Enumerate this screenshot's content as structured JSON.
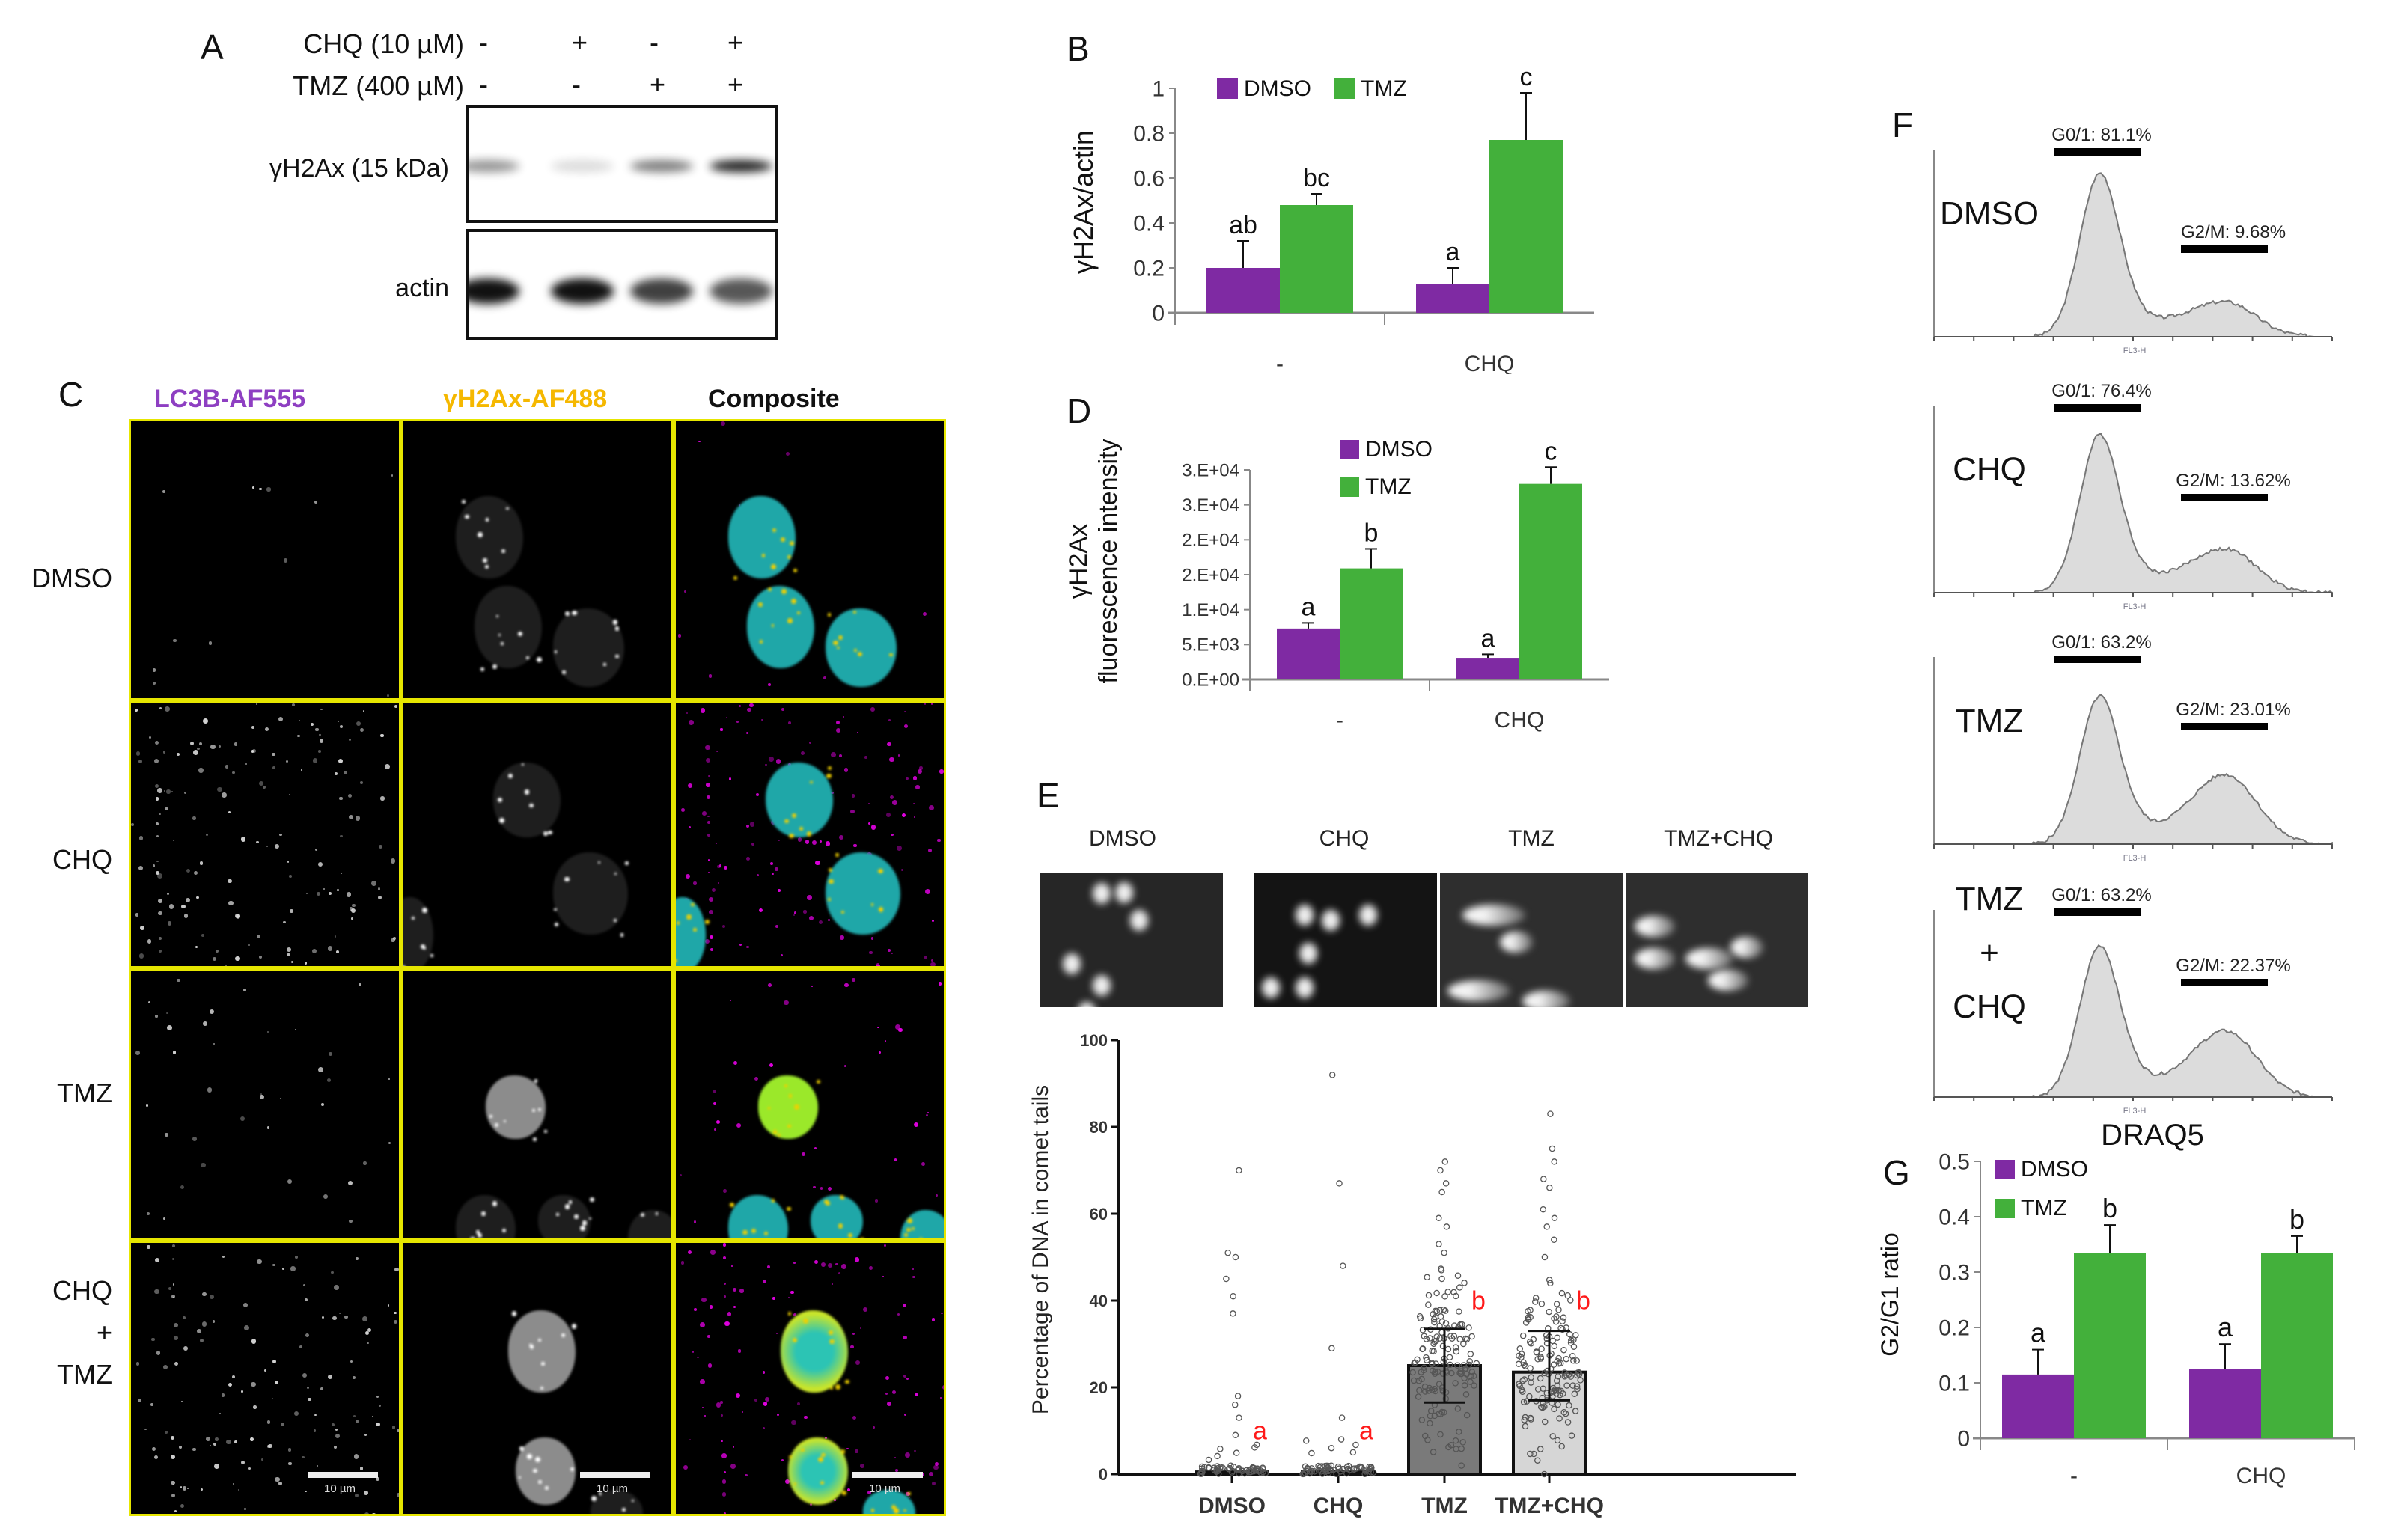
{
  "panels": {
    "A": {
      "letter": "A",
      "row_labels": [
        "CHQ (10 µM)",
        "TMZ (400 µM)"
      ],
      "chq_signs": [
        "-",
        "+",
        "-",
        "+"
      ],
      "tmz_signs": [
        "-",
        "-",
        "+",
        "+"
      ],
      "blots": [
        {
          "label": "γH2Ax (15 kDa)",
          "band_intensity": [
            0.45,
            0.15,
            0.55,
            0.95
          ]
        },
        {
          "label": "actin",
          "band_intensity": [
            1.0,
            1.0,
            0.8,
            0.7
          ]
        }
      ]
    },
    "B": {
      "letter": "B"
    },
    "C": {
      "letter": "C",
      "column_headers": [
        "LC3B-AF555",
        "γH2Ax-AF488",
        "Composite"
      ],
      "column_colors": [
        "#8e3fc2",
        "#f5b800",
        "#111111"
      ],
      "row_labels": [
        "DMSO",
        "CHQ",
        "TMZ",
        "CHQ\n+\nTMZ"
      ],
      "row_label_lines": [
        [
          "DMSO"
        ],
        [
          "CHQ"
        ],
        [
          "TMZ"
        ],
        [
          "CHQ",
          "+",
          "TMZ"
        ]
      ],
      "scale_bar": "10 µm",
      "border_color": "#e6e600"
    },
    "D": {
      "letter": "D"
    },
    "E": {
      "letter": "E",
      "image_labels": [
        "DMSO",
        "CHQ",
        "TMZ",
        "TMZ+CHQ"
      ]
    },
    "F": {
      "letter": "F",
      "histograms": [
        {
          "label_lines": [
            "DMSO"
          ],
          "g01": "G0/1: 81.1%",
          "g2m": "G2/M: 9.68%",
          "axis": "FL3-H"
        },
        {
          "label_lines": [
            "CHQ"
          ],
          "g01": "G0/1: 76.4%",
          "g2m": "G2/M: 13.62%",
          "axis": "FL3-H"
        },
        {
          "label_lines": [
            "TMZ"
          ],
          "g01": "G0/1: 63.2%",
          "g2m": "G2/M: 23.01%",
          "axis": "FL3-H"
        },
        {
          "label_lines": [
            "TMZ",
            "+",
            "CHQ"
          ],
          "g01": "G0/1: 63.2%",
          "g2m": "G2/M: 22.37%",
          "axis": "FL3-H"
        }
      ]
    },
    "G": {
      "letter": "G"
    }
  },
  "colors": {
    "dmso": "#7f2aa3",
    "tmz": "#43b03b",
    "letter_red": "#ff1a1a"
  },
  "chart_data": [
    {
      "id": "B",
      "type": "bar",
      "title": "",
      "xlabel": "",
      "ylabel": "γH2Ax/actin",
      "categories": [
        "-",
        "CHQ"
      ],
      "series": [
        {
          "name": "DMSO",
          "values": [
            0.2,
            0.13
          ],
          "errors": [
            0.12,
            0.07
          ],
          "letters": [
            "ab",
            "a"
          ]
        },
        {
          "name": "TMZ",
          "values": [
            0.48,
            0.77
          ],
          "errors": [
            0.05,
            0.21
          ],
          "letters": [
            "bc",
            "c"
          ]
        }
      ],
      "ylim": [
        0,
        1
      ],
      "yticks": [
        "0",
        "0.2",
        "0.4",
        "0.6",
        "0.8",
        "1"
      ],
      "legend_position": "top-left inside"
    },
    {
      "id": "D",
      "type": "bar",
      "title": "",
      "xlabel": "",
      "ylabel": "γH2Ax fluorescence intensity",
      "ylabel_lines": [
        "γH2Ax",
        "fluorescence intensity"
      ],
      "categories": [
        "-",
        "CHQ"
      ],
      "series": [
        {
          "name": "DMSO",
          "values": [
            7300,
            3100
          ],
          "errors": [
            800,
            500
          ],
          "letters": [
            "a",
            "a"
          ]
        },
        {
          "name": "TMZ",
          "values": [
            15900,
            28000
          ],
          "errors": [
            2800,
            2400
          ],
          "letters": [
            "b",
            "c"
          ]
        }
      ],
      "ylim": [
        0,
        30000
      ],
      "yticks": [
        "0.E+00",
        "5.E+03",
        "1.E+04",
        "2.E+04",
        "2.E+04",
        "3.E+04",
        "3.E+04"
      ],
      "legend_position": "top-left inside"
    },
    {
      "id": "E",
      "type": "bar",
      "title": "",
      "xlabel": "",
      "ylabel": "Percentage of DNA in comet tails",
      "categories": [
        "DMSO",
        "CHQ",
        "TMZ",
        "TMZ+CHQ"
      ],
      "values": [
        0.5,
        0.5,
        25,
        23.5
      ],
      "errors_low": [
        0,
        0,
        16.5,
        17
      ],
      "errors_high": [
        0,
        0,
        33.5,
        33
      ],
      "letters": [
        "a",
        "a",
        "b",
        "b"
      ],
      "bar_fills": [
        "#ffffff",
        "#ffffff",
        "#7a7a7a",
        "#d6d6d6"
      ],
      "outliers": [
        [
          70,
          51,
          50,
          45,
          41,
          37,
          18,
          16,
          13,
          9
        ],
        [
          92,
          67,
          48,
          29,
          13,
          8,
          6
        ],
        [
          72,
          70,
          67,
          65,
          59,
          57,
          53,
          51,
          47,
          45,
          42
        ],
        [
          83,
          75,
          72,
          68,
          66,
          61,
          59,
          57,
          54,
          50,
          44
        ]
      ],
      "ylim": [
        0,
        100
      ],
      "yticks": [
        "0",
        "20",
        "40",
        "60",
        "80",
        "100"
      ]
    },
    {
      "id": "G",
      "type": "bar",
      "title": "DRAQ5",
      "xlabel": "",
      "ylabel": "G2/G1 ratio",
      "categories": [
        "-",
        "CHQ"
      ],
      "series": [
        {
          "name": "DMSO",
          "values": [
            0.115,
            0.125
          ],
          "errors": [
            0.045,
            0.045
          ],
          "letters": [
            "a",
            "a"
          ]
        },
        {
          "name": "TMZ",
          "values": [
            0.335,
            0.335
          ],
          "errors": [
            0.05,
            0.03
          ],
          "letters": [
            "b",
            "b"
          ]
        }
      ],
      "ylim": [
        0,
        0.5
      ],
      "yticks": [
        "0",
        "0.1",
        "0.2",
        "0.3",
        "0.4",
        "0.5"
      ],
      "legend_position": "top-left inside"
    }
  ]
}
